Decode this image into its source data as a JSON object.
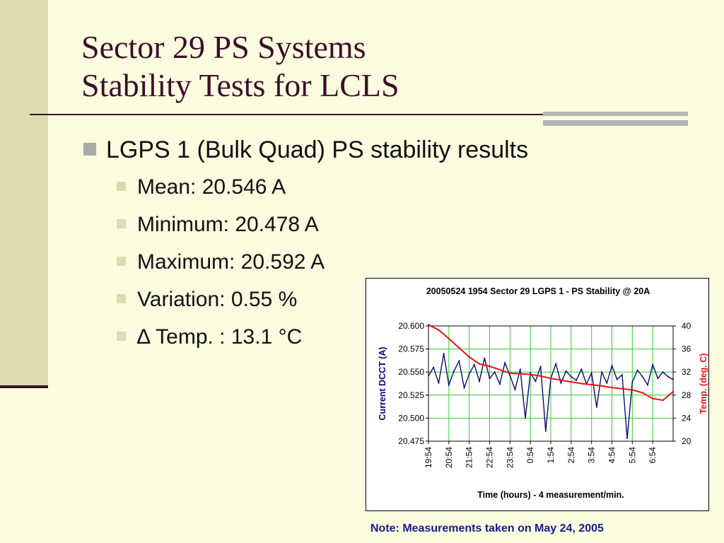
{
  "slide": {
    "title_line1": "Sector 29 PS Systems",
    "title_line2": "Stability Tests for LCLS",
    "bullet_main": "LGPS 1 (Bulk Quad) PS stability results",
    "sub_bullets": [
      "Mean: 20.546 A",
      "Minimum: 20.478 A",
      "Maximum: 20.592 A",
      "Variation: 0.55 %",
      "∆ Temp. : 13.1 °C"
    ],
    "note": "Note: Measurements taken on May 24, 2005"
  },
  "colors": {
    "title": "#3a0f2a",
    "current_series": "#0a0a78",
    "temp_series": "#ee1111",
    "grid": "#33cc33",
    "note": "#1a1a8c"
  },
  "chart_data": {
    "type": "line",
    "title": "20050524 1954  Sector 29 LGPS 1 - PS Stability @ 20A",
    "xlabel": "Time (hours) - 4 measurement/min.",
    "ylabel": "Current DCCT (A)",
    "y2label": "Temp. (deg. C)",
    "x_ticks": [
      "19:54",
      "20:54",
      "21:54",
      "22:54",
      "23:54",
      "0:54",
      "1:54",
      "2:54",
      "3:54",
      "4:54",
      "5:54",
      "6:54"
    ],
    "y_ticks": [
      "20.600",
      "20.575",
      "20.550",
      "20.525",
      "20.500",
      "20.475"
    ],
    "y2_ticks": [
      "40",
      "36",
      "32",
      "28",
      "24",
      "20"
    ],
    "ylim": [
      20.475,
      20.6
    ],
    "y2lim": [
      20,
      40
    ],
    "xlim": [
      0,
      12
    ],
    "grid": true,
    "series": [
      {
        "axis": "left",
        "x": [
          0,
          0.25,
          0.5,
          0.75,
          1,
          1.25,
          1.5,
          1.75,
          2,
          2.25,
          2.5,
          2.75,
          3,
          3.25,
          3.5,
          3.75,
          4,
          4.25,
          4.5,
          4.75,
          5,
          5.25,
          5.5,
          5.75,
          6,
          6.25,
          6.5,
          6.75,
          7,
          7.25,
          7.5,
          7.75,
          8,
          8.25,
          8.5,
          8.75,
          9,
          9.25,
          9.5,
          9.75,
          10,
          10.25,
          10.5,
          10.75,
          11,
          11.25,
          11.5,
          11.75,
          12
        ],
        "values": [
          20.546,
          20.555,
          20.538,
          20.57,
          20.536,
          20.551,
          20.562,
          20.533,
          20.548,
          20.558,
          20.54,
          20.565,
          20.543,
          20.55,
          20.537,
          20.56,
          20.546,
          20.531,
          20.553,
          20.5,
          20.549,
          20.54,
          20.556,
          20.486,
          20.543,
          20.559,
          20.538,
          20.551,
          20.545,
          20.541,
          20.553,
          20.537,
          20.549,
          20.512,
          20.55,
          20.538,
          20.557,
          20.542,
          20.547,
          20.478,
          20.539,
          20.552,
          20.545,
          20.536,
          20.558,
          20.543,
          20.55,
          20.545,
          20.542
        ]
      },
      {
        "axis": "right",
        "x": [
          0,
          0.5,
          1,
          1.5,
          2,
          2.5,
          3,
          3.5,
          4,
          4.5,
          5,
          5.5,
          6,
          6.5,
          7,
          7.5,
          8,
          8.5,
          9,
          9.5,
          10,
          10.5,
          11,
          11.5,
          12
        ],
        "values": [
          40.2,
          39.3,
          37.8,
          36.2,
          34.6,
          33.4,
          33.0,
          32.4,
          31.8,
          31.7,
          31.6,
          31.3,
          30.9,
          30.6,
          30.3,
          30.0,
          29.8,
          29.6,
          29.3,
          29.1,
          28.9,
          28.4,
          27.4,
          27.1,
          28.6
        ]
      }
    ]
  }
}
